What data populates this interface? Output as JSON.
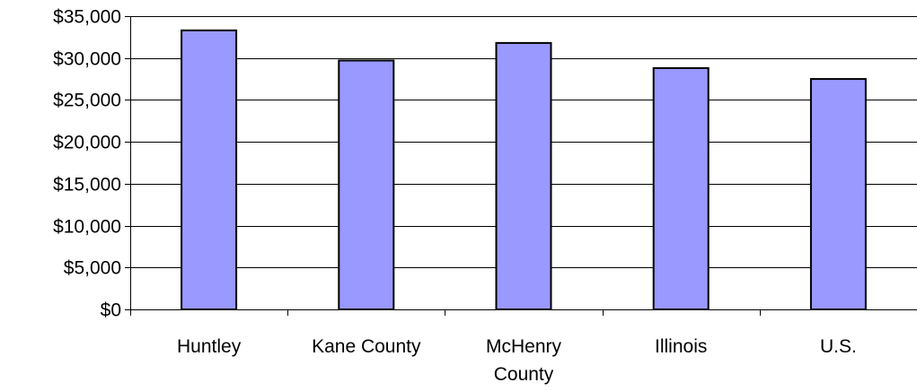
{
  "chart_data": {
    "type": "bar",
    "title": "",
    "xlabel": "",
    "ylabel": "",
    "categories": [
      "Huntley",
      "Kane County",
      "McHenry County",
      "Illinois",
      "U.S."
    ],
    "category_lines": [
      [
        "Huntley"
      ],
      [
        "Kane County"
      ],
      [
        "McHenry",
        "County"
      ],
      [
        "Illinois"
      ],
      [
        "U.S."
      ]
    ],
    "values": [
      33300,
      29700,
      31800,
      28800,
      27500
    ],
    "ylim": [
      0,
      35000
    ],
    "y_ticks": [
      0,
      5000,
      10000,
      15000,
      20000,
      25000,
      30000,
      35000
    ],
    "y_tick_labels": [
      "$0",
      "$5,000",
      "$10,000",
      "$15,000",
      "$20,000",
      "$25,000",
      "$30,000",
      "$35,000"
    ],
    "grid": true,
    "legend": "none",
    "bar_color": "#9999ff",
    "bar_edge_color": "#000000"
  }
}
